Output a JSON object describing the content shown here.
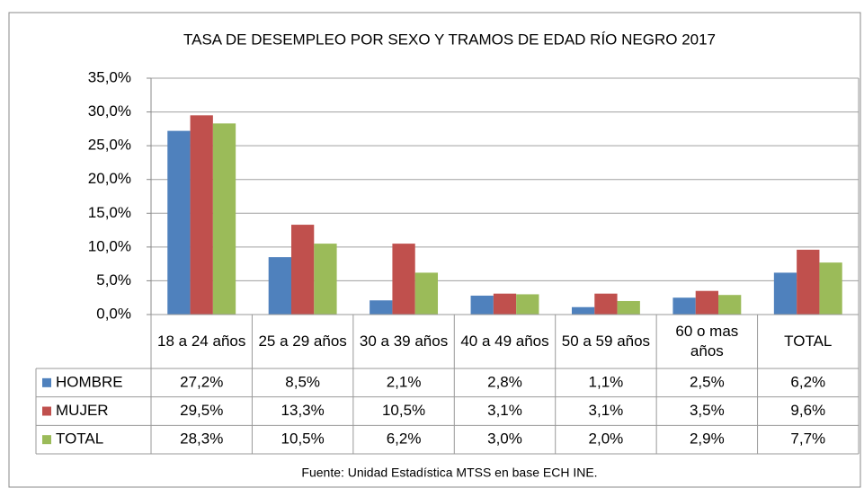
{
  "chart_data": {
    "type": "bar",
    "title": "TASA DE DESEMPLEO POR SEXO Y TRAMOS DE EDAD RÍO NEGRO 2017",
    "categories": [
      "18 a 24 años",
      "25 a 29 años",
      "30 a 39 años",
      "40 a 49 años",
      "50 a 59 años",
      "60 o mas años",
      "TOTAL"
    ],
    "series": [
      {
        "name": "HOMBRE",
        "color": "#4f81bd",
        "values": [
          27.2,
          8.5,
          2.1,
          2.8,
          1.1,
          2.5,
          6.2
        ],
        "value_labels": [
          "27,2%",
          "8,5%",
          "2,1%",
          "2,8%",
          "1,1%",
          "2,5%",
          "6,2%"
        ]
      },
      {
        "name": "MUJER",
        "color": "#c0504d",
        "values": [
          29.5,
          13.3,
          10.5,
          3.1,
          3.1,
          3.5,
          9.6
        ],
        "value_labels": [
          "29,5%",
          "13,3%",
          "10,5%",
          "3,1%",
          "3,1%",
          "3,5%",
          "9,6%"
        ]
      },
      {
        "name": "TOTAL",
        "color": "#9bbb59",
        "values": [
          28.3,
          10.5,
          6.2,
          3.0,
          2.0,
          2.9,
          7.7
        ],
        "value_labels": [
          "28,3%",
          "10,5%",
          "6,2%",
          "3,0%",
          "2,0%",
          "2,9%",
          "7,7%"
        ]
      }
    ],
    "ylim": [
      0,
      35
    ],
    "yticks": [
      {
        "value": 0,
        "label": "0,0%"
      },
      {
        "value": 5,
        "label": "5,0%"
      },
      {
        "value": 10,
        "label": "10,0%"
      },
      {
        "value": 15,
        "label": "15,0%"
      },
      {
        "value": 20,
        "label": "20,0%"
      },
      {
        "value": 25,
        "label": "25,0%"
      },
      {
        "value": 30,
        "label": "30,0%"
      },
      {
        "value": 35,
        "label": "35,0%"
      }
    ],
    "grid": true,
    "source": "Fuente: Unidad Estadística MTSS en base ECH INE."
  }
}
